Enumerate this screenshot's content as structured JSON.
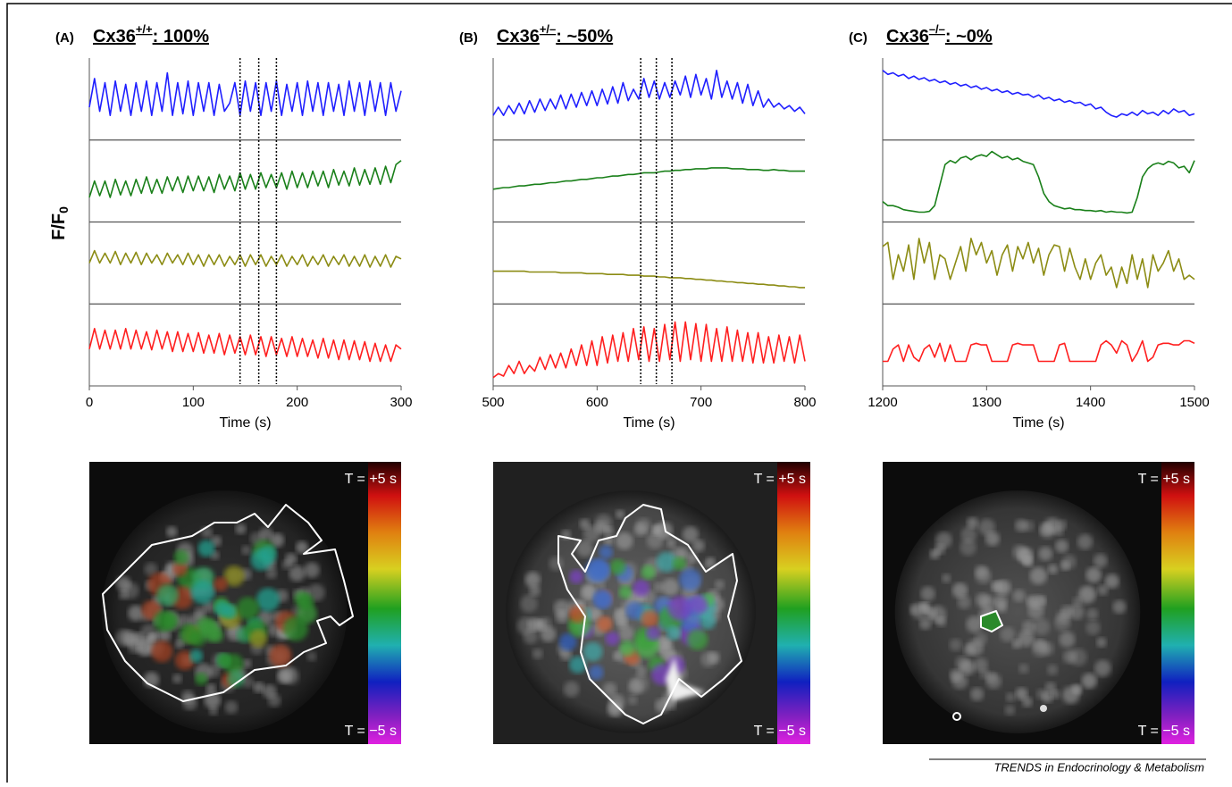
{
  "chart_data": [
    {
      "type": "line",
      "panel_label": "(A)",
      "title": "Cx36",
      "title_superscript": "+/+",
      "title_suffix": ": 100%",
      "y_label": "F/F",
      "y_label_subscript": "0",
      "x_label": "Time (s)",
      "xlim": [
        0,
        300
      ],
      "xticks": [
        0,
        100,
        200,
        300
      ],
      "ylim": [
        0,
        1
      ],
      "markers": [
        145,
        163,
        180
      ],
      "colorbar_top": "T = +5 s",
      "colorbar_bottom": "T = −5 s",
      "x": [
        0,
        5,
        10,
        15,
        20,
        25,
        30,
        35,
        40,
        45,
        50,
        55,
        60,
        65,
        70,
        75,
        80,
        85,
        90,
        95,
        100,
        105,
        110,
        115,
        120,
        125,
        130,
        135,
        140,
        145,
        150,
        155,
        160,
        165,
        170,
        175,
        180,
        185,
        190,
        195,
        200,
        205,
        210,
        215,
        220,
        225,
        230,
        235,
        240,
        245,
        250,
        255,
        260,
        265,
        270,
        275,
        280,
        285,
        290,
        295,
        300
      ],
      "series": [
        {
          "color": "#1f1fff",
          "values": [
            0.4,
            0.75,
            0.35,
            0.7,
            0.3,
            0.72,
            0.35,
            0.68,
            0.3,
            0.7,
            0.35,
            0.72,
            0.3,
            0.7,
            0.35,
            0.82,
            0.3,
            0.7,
            0.32,
            0.72,
            0.3,
            0.7,
            0.35,
            0.7,
            0.3,
            0.68,
            0.35,
            0.45,
            0.7,
            0.3,
            0.72,
            0.35,
            0.7,
            0.3,
            0.7,
            0.35,
            0.72,
            0.3,
            0.68,
            0.35,
            0.7,
            0.3,
            0.72,
            0.35,
            0.7,
            0.3,
            0.7,
            0.35,
            0.68,
            0.3,
            0.72,
            0.35,
            0.7,
            0.3,
            0.72,
            0.35,
            0.7,
            0.3,
            0.7,
            0.35,
            0.6
          ]
        },
        {
          "color": "#1a801a",
          "values": [
            0.3,
            0.5,
            0.32,
            0.5,
            0.3,
            0.52,
            0.33,
            0.5,
            0.32,
            0.52,
            0.35,
            0.55,
            0.35,
            0.52,
            0.35,
            0.55,
            0.38,
            0.55,
            0.36,
            0.56,
            0.38,
            0.56,
            0.38,
            0.55,
            0.36,
            0.58,
            0.4,
            0.56,
            0.38,
            0.6,
            0.4,
            0.58,
            0.4,
            0.6,
            0.42,
            0.58,
            0.42,
            0.6,
            0.4,
            0.62,
            0.42,
            0.6,
            0.42,
            0.62,
            0.44,
            0.62,
            0.42,
            0.64,
            0.45,
            0.62,
            0.44,
            0.66,
            0.45,
            0.64,
            0.46,
            0.66,
            0.46,
            0.68,
            0.48,
            0.7,
            0.75
          ]
        },
        {
          "color": "#8c8c14",
          "values": [
            0.5,
            0.65,
            0.5,
            0.62,
            0.5,
            0.64,
            0.48,
            0.62,
            0.5,
            0.63,
            0.48,
            0.62,
            0.5,
            0.6,
            0.48,
            0.62,
            0.5,
            0.6,
            0.48,
            0.62,
            0.48,
            0.6,
            0.46,
            0.6,
            0.48,
            0.6,
            0.46,
            0.58,
            0.48,
            0.6,
            0.46,
            0.6,
            0.48,
            0.6,
            0.46,
            0.58,
            0.48,
            0.6,
            0.46,
            0.58,
            0.48,
            0.6,
            0.46,
            0.58,
            0.48,
            0.6,
            0.46,
            0.58,
            0.48,
            0.6,
            0.46,
            0.58,
            0.46,
            0.6,
            0.45,
            0.58,
            0.46,
            0.6,
            0.45,
            0.58,
            0.55
          ]
        },
        {
          "color": "#ff1f1f",
          "values": [
            0.45,
            0.7,
            0.45,
            0.68,
            0.45,
            0.68,
            0.45,
            0.7,
            0.45,
            0.68,
            0.45,
            0.66,
            0.44,
            0.68,
            0.45,
            0.66,
            0.42,
            0.66,
            0.42,
            0.64,
            0.42,
            0.65,
            0.4,
            0.62,
            0.4,
            0.64,
            0.38,
            0.62,
            0.4,
            0.6,
            0.38,
            0.62,
            0.38,
            0.6,
            0.36,
            0.6,
            0.38,
            0.58,
            0.36,
            0.6,
            0.36,
            0.58,
            0.36,
            0.56,
            0.34,
            0.58,
            0.34,
            0.56,
            0.32,
            0.56,
            0.32,
            0.55,
            0.32,
            0.54,
            0.3,
            0.52,
            0.3,
            0.5,
            0.3,
            0.5,
            0.45
          ]
        }
      ]
    },
    {
      "type": "line",
      "panel_label": "(B)",
      "title": "Cx36",
      "title_superscript": "+/–",
      "title_suffix": ": ~50%",
      "x_label": "Time (s)",
      "xlim": [
        500,
        800
      ],
      "xticks": [
        500,
        600,
        700,
        800
      ],
      "ylim": [
        0,
        1
      ],
      "markers": [
        642,
        657,
        672
      ],
      "colorbar_top": "T = +5 s",
      "colorbar_bottom": "T = −5 s",
      "x": [
        500,
        505,
        510,
        515,
        520,
        525,
        530,
        535,
        540,
        545,
        550,
        555,
        560,
        565,
        570,
        575,
        580,
        585,
        590,
        595,
        600,
        605,
        610,
        615,
        620,
        625,
        630,
        635,
        640,
        645,
        650,
        655,
        660,
        665,
        670,
        675,
        680,
        685,
        690,
        695,
        700,
        705,
        710,
        715,
        720,
        725,
        730,
        735,
        740,
        745,
        750,
        755,
        760,
        765,
        770,
        775,
        780,
        785,
        790,
        795,
        800
      ],
      "series": [
        {
          "color": "#1f1fff",
          "values": [
            0.3,
            0.4,
            0.3,
            0.42,
            0.32,
            0.45,
            0.32,
            0.48,
            0.34,
            0.5,
            0.36,
            0.5,
            0.38,
            0.55,
            0.38,
            0.56,
            0.4,
            0.58,
            0.42,
            0.6,
            0.42,
            0.62,
            0.44,
            0.65,
            0.45,
            0.7,
            0.48,
            0.62,
            0.5,
            0.75,
            0.52,
            0.72,
            0.5,
            0.7,
            0.52,
            0.72,
            0.55,
            0.78,
            0.52,
            0.8,
            0.55,
            0.75,
            0.5,
            0.85,
            0.52,
            0.72,
            0.5,
            0.7,
            0.45,
            0.68,
            0.42,
            0.6,
            0.4,
            0.5,
            0.4,
            0.45,
            0.38,
            0.42,
            0.35,
            0.4,
            0.32
          ]
        },
        {
          "color": "#1a801a",
          "values": [
            0.4,
            0.41,
            0.42,
            0.42,
            0.43,
            0.44,
            0.44,
            0.45,
            0.46,
            0.46,
            0.47,
            0.48,
            0.48,
            0.49,
            0.5,
            0.5,
            0.51,
            0.52,
            0.52,
            0.53,
            0.54,
            0.54,
            0.55,
            0.56,
            0.56,
            0.57,
            0.58,
            0.58,
            0.59,
            0.6,
            0.6,
            0.6,
            0.61,
            0.62,
            0.62,
            0.63,
            0.63,
            0.64,
            0.64,
            0.65,
            0.65,
            0.65,
            0.66,
            0.66,
            0.66,
            0.66,
            0.65,
            0.65,
            0.65,
            0.64,
            0.64,
            0.64,
            0.63,
            0.63,
            0.64,
            0.63,
            0.63,
            0.62,
            0.62,
            0.62,
            0.62
          ]
        },
        {
          "color": "#8c8c14",
          "values": [
            0.4,
            0.4,
            0.4,
            0.4,
            0.4,
            0.4,
            0.4,
            0.39,
            0.39,
            0.39,
            0.39,
            0.39,
            0.39,
            0.38,
            0.38,
            0.38,
            0.38,
            0.38,
            0.37,
            0.37,
            0.37,
            0.37,
            0.36,
            0.36,
            0.36,
            0.36,
            0.35,
            0.35,
            0.35,
            0.34,
            0.34,
            0.34,
            0.33,
            0.33,
            0.32,
            0.32,
            0.32,
            0.31,
            0.31,
            0.3,
            0.3,
            0.29,
            0.29,
            0.28,
            0.28,
            0.27,
            0.27,
            0.26,
            0.26,
            0.25,
            0.25,
            0.24,
            0.24,
            0.23,
            0.23,
            0.22,
            0.22,
            0.21,
            0.21,
            0.2,
            0.2
          ]
        },
        {
          "color": "#ff1f1f",
          "values": [
            0.1,
            0.15,
            0.12,
            0.25,
            0.15,
            0.3,
            0.15,
            0.25,
            0.18,
            0.35,
            0.2,
            0.38,
            0.22,
            0.4,
            0.22,
            0.45,
            0.25,
            0.5,
            0.25,
            0.55,
            0.25,
            0.6,
            0.28,
            0.62,
            0.3,
            0.65,
            0.3,
            0.7,
            0.32,
            0.72,
            0.3,
            0.7,
            0.3,
            0.75,
            0.32,
            0.78,
            0.3,
            0.78,
            0.32,
            0.76,
            0.3,
            0.75,
            0.3,
            0.7,
            0.3,
            0.72,
            0.3,
            0.68,
            0.3,
            0.65,
            0.28,
            0.65,
            0.28,
            0.6,
            0.28,
            0.62,
            0.3,
            0.6,
            0.28,
            0.62,
            0.3
          ]
        }
      ]
    },
    {
      "type": "line",
      "panel_label": "(C)",
      "title": "Cx36",
      "title_superscript": "–/–",
      "title_suffix": ": ~0%",
      "x_label": "Time (s)",
      "xlim": [
        1200,
        1500
      ],
      "xticks": [
        1200,
        1300,
        1400,
        1500
      ],
      "ylim": [
        0,
        1
      ],
      "colorbar_top": "T = +5 s",
      "colorbar_bottom": "T = −5 s",
      "x": [
        1200,
        1205,
        1210,
        1215,
        1220,
        1225,
        1230,
        1235,
        1240,
        1245,
        1250,
        1255,
        1260,
        1265,
        1270,
        1275,
        1280,
        1285,
        1290,
        1295,
        1300,
        1305,
        1310,
        1315,
        1320,
        1325,
        1330,
        1335,
        1340,
        1345,
        1350,
        1355,
        1360,
        1365,
        1370,
        1375,
        1380,
        1385,
        1390,
        1395,
        1400,
        1405,
        1410,
        1415,
        1420,
        1425,
        1430,
        1435,
        1440,
        1445,
        1450,
        1455,
        1460,
        1465,
        1470,
        1475,
        1480,
        1485,
        1490,
        1495,
        1500
      ],
      "series": [
        {
          "color": "#1f1fff",
          "values": [
            0.85,
            0.8,
            0.82,
            0.78,
            0.8,
            0.75,
            0.78,
            0.74,
            0.76,
            0.72,
            0.74,
            0.7,
            0.72,
            0.68,
            0.7,
            0.66,
            0.68,
            0.64,
            0.66,
            0.62,
            0.64,
            0.6,
            0.62,
            0.58,
            0.6,
            0.56,
            0.58,
            0.55,
            0.56,
            0.52,
            0.55,
            0.5,
            0.52,
            0.48,
            0.5,
            0.46,
            0.48,
            0.45,
            0.46,
            0.42,
            0.44,
            0.38,
            0.4,
            0.34,
            0.3,
            0.28,
            0.32,
            0.3,
            0.34,
            0.3,
            0.36,
            0.32,
            0.34,
            0.3,
            0.36,
            0.32,
            0.38,
            0.34,
            0.36,
            0.3,
            0.32
          ]
        },
        {
          "color": "#1a801a",
          "values": [
            0.25,
            0.2,
            0.2,
            0.18,
            0.15,
            0.14,
            0.13,
            0.12,
            0.12,
            0.13,
            0.2,
            0.45,
            0.7,
            0.75,
            0.72,
            0.78,
            0.8,
            0.76,
            0.8,
            0.82,
            0.8,
            0.86,
            0.82,
            0.78,
            0.8,
            0.76,
            0.78,
            0.74,
            0.72,
            0.7,
            0.55,
            0.35,
            0.25,
            0.2,
            0.18,
            0.16,
            0.17,
            0.15,
            0.15,
            0.14,
            0.14,
            0.13,
            0.14,
            0.12,
            0.13,
            0.12,
            0.12,
            0.11,
            0.12,
            0.3,
            0.55,
            0.65,
            0.7,
            0.72,
            0.7,
            0.74,
            0.72,
            0.66,
            0.68,
            0.6,
            0.75
          ]
        },
        {
          "color": "#8c8c14",
          "values": [
            0.7,
            0.75,
            0.3,
            0.6,
            0.4,
            0.72,
            0.3,
            0.8,
            0.5,
            0.75,
            0.3,
            0.6,
            0.55,
            0.3,
            0.5,
            0.7,
            0.4,
            0.8,
            0.6,
            0.75,
            0.5,
            0.65,
            0.35,
            0.6,
            0.72,
            0.4,
            0.7,
            0.55,
            0.75,
            0.5,
            0.68,
            0.35,
            0.6,
            0.72,
            0.7,
            0.4,
            0.68,
            0.45,
            0.3,
            0.55,
            0.3,
            0.5,
            0.6,
            0.35,
            0.45,
            0.2,
            0.45,
            0.25,
            0.6,
            0.3,
            0.55,
            0.2,
            0.6,
            0.4,
            0.5,
            0.65,
            0.4,
            0.55,
            0.3,
            0.35,
            0.3
          ]
        },
        {
          "color": "#ff1f1f",
          "values": [
            0.3,
            0.3,
            0.45,
            0.5,
            0.3,
            0.5,
            0.35,
            0.3,
            0.45,
            0.5,
            0.35,
            0.52,
            0.3,
            0.5,
            0.3,
            0.3,
            0.3,
            0.5,
            0.52,
            0.5,
            0.5,
            0.3,
            0.3,
            0.3,
            0.3,
            0.5,
            0.52,
            0.5,
            0.5,
            0.5,
            0.3,
            0.3,
            0.3,
            0.3,
            0.5,
            0.52,
            0.3,
            0.3,
            0.3,
            0.3,
            0.3,
            0.3,
            0.5,
            0.55,
            0.5,
            0.4,
            0.55,
            0.5,
            0.3,
            0.4,
            0.55,
            0.3,
            0.35,
            0.5,
            0.52,
            0.52,
            0.5,
            0.5,
            0.55,
            0.55,
            0.52
          ]
        }
      ]
    }
  ],
  "footer": "TRENDS in Endocrinology & Metabolism"
}
